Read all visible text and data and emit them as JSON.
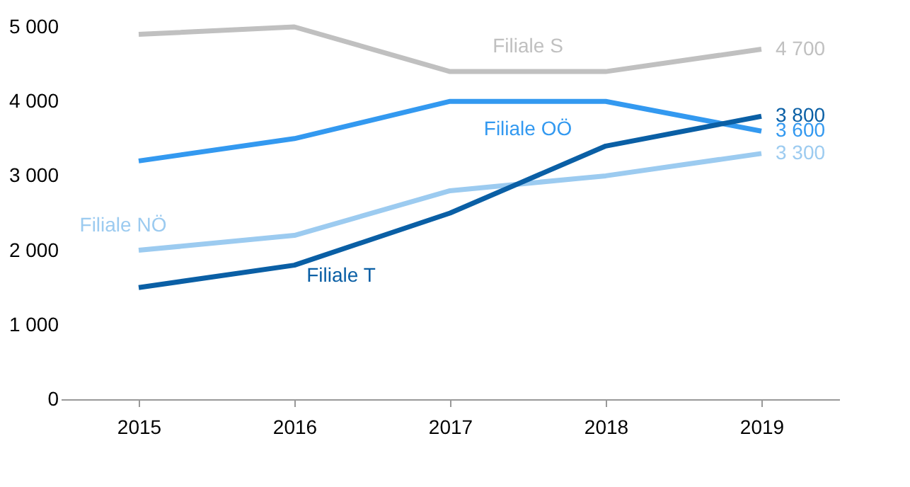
{
  "chart_data": {
    "type": "line",
    "categories": [
      "2015",
      "2016",
      "2017",
      "2018",
      "2019"
    ],
    "series": [
      {
        "name": "Filiale S",
        "color": "#c0c0c0",
        "values": [
          4900,
          5000,
          4400,
          4400,
          4700
        ],
        "value_labels": [
          null,
          null,
          null,
          null,
          "4 700"
        ]
      },
      {
        "name": "Filiale OÖ",
        "color": "#3399f0",
        "values": [
          3200,
          3500,
          4000,
          4000,
          3600
        ],
        "value_labels": [
          null,
          null,
          null,
          null,
          "3 600"
        ]
      },
      {
        "name": "Filiale NÖ",
        "color": "#9ccbf0",
        "values": [
          2000,
          2200,
          2800,
          3000,
          3300
        ],
        "value_labels": [
          null,
          null,
          null,
          null,
          "3 300"
        ]
      },
      {
        "name": "Filiale T",
        "color": "#0a5fa5",
        "values": [
          1500,
          1800,
          2500,
          3400,
          3800
        ],
        "value_labels": [
          null,
          null,
          null,
          null,
          "3 800"
        ]
      }
    ],
    "ylim": [
      0,
      5000
    ],
    "yticks": [
      {
        "value": 0,
        "label": "0"
      },
      {
        "value": 1000,
        "label": "1 000"
      },
      {
        "value": 2000,
        "label": "2 000"
      },
      {
        "value": 3000,
        "label": "3 000"
      },
      {
        "value": 4000,
        "label": "4 000"
      },
      {
        "value": 5000,
        "label": "5 000"
      }
    ],
    "grid": false,
    "legend": false,
    "marker": "none",
    "line_style": "solid"
  }
}
